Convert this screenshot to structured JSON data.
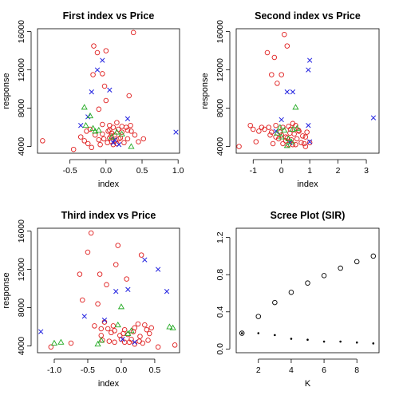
{
  "chart_data": [
    {
      "type": "scatter",
      "title": "First index vs Price",
      "xlabel": "index",
      "ylabel": "response",
      "xlim": [
        -0.95,
        1.02
      ],
      "ylim": [
        3300,
        16300
      ],
      "xticks": [
        -0.5,
        0,
        0.5,
        1
      ],
      "xtick_labels": [
        "-0.5",
        "0.0",
        "0.5",
        "1.0"
      ],
      "yticks": [
        4000,
        8000,
        12000,
        16000
      ],
      "ytick_labels": [
        "4000",
        "8000",
        "12000",
        "16000"
      ],
      "series": [
        {
          "marker": "circle",
          "color": "#e02020",
          "points": [
            [
              -0.88,
              4600
            ],
            [
              -0.45,
              3700
            ],
            [
              -0.35,
              5000
            ],
            [
              -0.3,
              4600
            ],
            [
              -0.27,
              5600
            ],
            [
              -0.25,
              4300
            ],
            [
              -0.22,
              5800
            ],
            [
              -0.2,
              3900
            ],
            [
              -0.18,
              11500
            ],
            [
              -0.17,
              14500
            ],
            [
              -0.15,
              5200
            ],
            [
              -0.12,
              13800
            ],
            [
              -0.1,
              4700
            ],
            [
              -0.1,
              7900
            ],
            [
              -0.08,
              4200
            ],
            [
              -0.05,
              5300
            ],
            [
              -0.05,
              6300
            ],
            [
              -0.03,
              4800
            ],
            [
              -0.02,
              10300
            ],
            [
              0.0,
              14000
            ],
            [
              0.0,
              8800
            ],
            [
              0.02,
              4400
            ],
            [
              0.03,
              5600
            ],
            [
              0.05,
              6200
            ],
            [
              0.05,
              4900
            ],
            [
              0.07,
              5100
            ],
            [
              0.08,
              5400
            ],
            [
              0.1,
              4200
            ],
            [
              0.1,
              6000
            ],
            [
              0.12,
              5200
            ],
            [
              0.13,
              4600
            ],
            [
              0.15,
              6500
            ],
            [
              0.15,
              4300
            ],
            [
              0.17,
              5800
            ],
            [
              0.2,
              4900
            ],
            [
              0.22,
              5500
            ],
            [
              0.25,
              4400
            ],
            [
              0.28,
              6000
            ],
            [
              0.3,
              5700
            ],
            [
              0.3,
              4800
            ],
            [
              0.32,
              9300
            ],
            [
              0.35,
              5600
            ],
            [
              0.38,
              15900
            ],
            [
              0.4,
              5200
            ],
            [
              0.45,
              4500
            ],
            [
              0.52,
              4800
            ],
            [
              -0.05,
              11600
            ],
            [
              0.05,
              5700
            ],
            [
              0.18,
              4800
            ],
            [
              0.22,
              6100
            ],
            [
              0.34,
              6200
            ],
            [
              0.08,
              4500
            ]
          ]
        },
        {
          "marker": "cross",
          "color": "#2020e0",
          "points": [
            [
              -0.35,
              6200
            ],
            [
              -0.25,
              7100
            ],
            [
              -0.2,
              9700
            ],
            [
              -0.12,
              12000
            ],
            [
              -0.05,
              13000
            ],
            [
              0.05,
              9900
            ],
            [
              0.1,
              4400
            ],
            [
              0.18,
              4200
            ],
            [
              0.3,
              6900
            ],
            [
              0.97,
              5500
            ],
            [
              0.12,
              4700
            ]
          ]
        },
        {
          "marker": "triangle",
          "color": "#22aa22",
          "points": [
            [
              -0.3,
              8100
            ],
            [
              -0.28,
              6200
            ],
            [
              -0.22,
              7200
            ],
            [
              -0.18,
              5900
            ],
            [
              -0.15,
              5600
            ],
            [
              -0.1,
              5700
            ],
            [
              0.08,
              5000
            ],
            [
              0.15,
              5500
            ],
            [
              0.22,
              5300
            ],
            [
              0.35,
              4000
            ]
          ]
        }
      ]
    },
    {
      "type": "scatter",
      "title": "Second index vs Price",
      "xlabel": "index",
      "ylabel": "response",
      "xlim": [
        -1.6,
        3.45
      ],
      "ylim": [
        3300,
        16300
      ],
      "xticks": [
        -1,
        0,
        1,
        2,
        3
      ],
      "xtick_labels": [
        "-1",
        "0",
        "1",
        "2",
        "3"
      ],
      "yticks": [
        4000,
        8000,
        12000,
        16000
      ],
      "ytick_labels": [
        "4000",
        "8000",
        "12000",
        "16000"
      ],
      "series": [
        {
          "marker": "circle",
          "color": "#e02020",
          "points": [
            [
              -1.5,
              4000
            ],
            [
              -1.1,
              6200
            ],
            [
              -1.0,
              5800
            ],
            [
              -0.9,
              4500
            ],
            [
              -0.7,
              6000
            ],
            [
              -0.5,
              13800
            ],
            [
              -0.4,
              5200
            ],
            [
              -0.35,
              11500
            ],
            [
              -0.3,
              4300
            ],
            [
              -0.25,
              13300
            ],
            [
              -0.2,
              6200
            ],
            [
              -0.15,
              10600
            ],
            [
              -0.1,
              4800
            ],
            [
              -0.05,
              5500
            ],
            [
              0.0,
              11500
            ],
            [
              0.05,
              4300
            ],
            [
              0.1,
              15700
            ],
            [
              0.15,
              5000
            ],
            [
              0.2,
              14500
            ],
            [
              0.25,
              6100
            ],
            [
              0.3,
              5400
            ],
            [
              0.35,
              4700
            ],
            [
              0.4,
              4200
            ],
            [
              0.45,
              5300
            ],
            [
              0.5,
              6200
            ],
            [
              0.55,
              4800
            ],
            [
              0.6,
              5700
            ],
            [
              0.7,
              4400
            ],
            [
              0.75,
              5100
            ],
            [
              0.85,
              4000
            ],
            [
              0.9,
              5500
            ],
            [
              -0.6,
              5800
            ],
            [
              -0.45,
              6000
            ],
            [
              -0.2,
              5000
            ],
            [
              0.0,
              5200
            ],
            [
              0.15,
              4600
            ],
            [
              0.25,
              4200
            ],
            [
              0.32,
              5800
            ],
            [
              0.4,
              6400
            ],
            [
              0.5,
              4200
            ],
            [
              0.62,
              5600
            ],
            [
              0.8,
              4300
            ],
            [
              0.85,
              5000
            ],
            [
              1.0,
              4400
            ],
            [
              -0.8,
              5600
            ],
            [
              -0.35,
              5500
            ],
            [
              0.05,
              6000
            ],
            [
              0.2,
              4900
            ]
          ]
        },
        {
          "marker": "cross",
          "color": "#2020e0",
          "points": [
            [
              -0.2,
              5600
            ],
            [
              0.0,
              6800
            ],
            [
              0.2,
              9700
            ],
            [
              0.4,
              9700
            ],
            [
              0.95,
              12000
            ],
            [
              1.0,
              13000
            ],
            [
              0.95,
              6200
            ],
            [
              1.0,
              4500
            ],
            [
              3.25,
              7000
            ],
            [
              0.3,
              4400
            ]
          ]
        },
        {
          "marker": "triangle",
          "color": "#22aa22",
          "points": [
            [
              -0.15,
              5400
            ],
            [
              0.0,
              5000
            ],
            [
              0.2,
              4100
            ],
            [
              0.35,
              4500
            ],
            [
              0.4,
              5800
            ],
            [
              0.5,
              8100
            ],
            [
              0.55,
              5900
            ],
            [
              0.1,
              5700
            ],
            [
              0.25,
              4800
            ],
            [
              -0.05,
              6000
            ]
          ]
        }
      ]
    },
    {
      "type": "scatter",
      "title": "Third index vs Price",
      "xlabel": "index",
      "ylabel": "response",
      "xlim": [
        -1.25,
        0.87
      ],
      "ylim": [
        3300,
        16300
      ],
      "xticks": [
        -1,
        -0.5,
        0,
        0.5
      ],
      "xtick_labels": [
        "-1.0",
        "-0.5",
        "0.0",
        "0.5"
      ],
      "yticks": [
        4000,
        8000,
        12000,
        16000
      ],
      "ytick_labels": [
        "4000",
        "8000",
        "12000",
        "16000"
      ],
      "series": [
        {
          "marker": "circle",
          "color": "#e02020",
          "points": [
            [
              -1.05,
              3900
            ],
            [
              -0.75,
              4300
            ],
            [
              -0.62,
              11500
            ],
            [
              -0.58,
              8800
            ],
            [
              -0.5,
              13800
            ],
            [
              -0.45,
              15800
            ],
            [
              -0.4,
              6100
            ],
            [
              -0.35,
              8400
            ],
            [
              -0.32,
              11500
            ],
            [
              -0.3,
              5100
            ],
            [
              -0.28,
              4600
            ],
            [
              -0.25,
              6500
            ],
            [
              -0.22,
              10400
            ],
            [
              -0.2,
              5800
            ],
            [
              -0.18,
              4500
            ],
            [
              -0.15,
              5400
            ],
            [
              -0.12,
              6100
            ],
            [
              -0.1,
              4400
            ],
            [
              -0.08,
              12500
            ],
            [
              -0.05,
              14500
            ],
            [
              -0.02,
              5100
            ],
            [
              0.0,
              4700
            ],
            [
              0.03,
              5300
            ],
            [
              0.05,
              5700
            ],
            [
              0.08,
              11000
            ],
            [
              0.1,
              5200
            ],
            [
              0.12,
              4400
            ],
            [
              0.15,
              4700
            ],
            [
              0.18,
              5500
            ],
            [
              0.2,
              4200
            ],
            [
              0.25,
              6300
            ],
            [
              0.28,
              5000
            ],
            [
              0.3,
              13500
            ],
            [
              0.32,
              4300
            ],
            [
              0.35,
              6200
            ],
            [
              0.38,
              5700
            ],
            [
              0.4,
              4600
            ],
            [
              0.45,
              5900
            ],
            [
              0.55,
              3900
            ],
            [
              0.8,
              4100
            ],
            [
              -0.3,
              5800
            ],
            [
              -0.1,
              5600
            ],
            [
              0.05,
              4400
            ],
            [
              0.2,
              5900
            ],
            [
              0.27,
              4500
            ],
            [
              0.42,
              5300
            ]
          ]
        },
        {
          "marker": "cross",
          "color": "#2020e0",
          "points": [
            [
              -1.2,
              5500
            ],
            [
              -0.55,
              7100
            ],
            [
              -0.25,
              6700
            ],
            [
              -0.08,
              9700
            ],
            [
              0.1,
              9900
            ],
            [
              0.2,
              4400
            ],
            [
              0.35,
              13000
            ],
            [
              0.55,
              12000
            ],
            [
              0.68,
              9700
            ],
            [
              0.02,
              4700
            ]
          ]
        },
        {
          "marker": "triangle",
          "color": "#22aa22",
          "points": [
            [
              -1.0,
              4300
            ],
            [
              -0.9,
              4400
            ],
            [
              -0.35,
              4200
            ],
            [
              -0.3,
              4600
            ],
            [
              -0.05,
              6200
            ],
            [
              0.0,
              8100
            ],
            [
              0.15,
              5600
            ],
            [
              0.72,
              6000
            ],
            [
              0.77,
              5900
            ],
            [
              0.1,
              5300
            ]
          ]
        }
      ]
    },
    {
      "type": "scatter",
      "title": "Scree Plot (SIR)",
      "xlabel": "K",
      "ylabel": "",
      "xlim": [
        0.65,
        9.35
      ],
      "ylim": [
        -0.04,
        1.3
      ],
      "xticks": [
        2,
        4,
        6,
        8
      ],
      "xtick_labels": [
        "2",
        "4",
        "6",
        "8"
      ],
      "yticks": [
        0,
        0.4,
        0.8,
        1.2
      ],
      "ytick_labels": [
        "0.0",
        "0.4",
        "0.8",
        "1.2"
      ],
      "series": [
        {
          "marker": "open-circle",
          "color": "#000000",
          "points": [
            [
              1,
              0.17
            ],
            [
              2,
              0.35
            ],
            [
              3,
              0.5
            ],
            [
              4,
              0.61
            ],
            [
              5,
              0.71
            ],
            [
              6,
              0.79
            ],
            [
              7,
              0.87
            ],
            [
              8,
              0.94
            ],
            [
              9,
              1.0
            ]
          ]
        },
        {
          "marker": "dot",
          "color": "#000000",
          "points": [
            [
              1,
              0.17
            ],
            [
              2,
              0.17
            ],
            [
              3,
              0.15
            ],
            [
              4,
              0.11
            ],
            [
              5,
              0.1
            ],
            [
              6,
              0.08
            ],
            [
              7,
              0.08
            ],
            [
              8,
              0.07
            ],
            [
              9,
              0.06
            ]
          ]
        }
      ]
    }
  ]
}
